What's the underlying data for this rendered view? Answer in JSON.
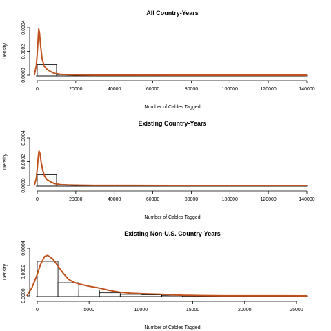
{
  "colors": {
    "density": "#c0521e",
    "axis": "#000000",
    "hist": "#000000"
  },
  "chart_data": [
    {
      "type": "histogram-density",
      "title": "All Country-Years",
      "xlabel": "Number of Cables Tagged",
      "ylabel": "Density",
      "xlim": [
        0,
        140000
      ],
      "ylim": [
        0,
        0.0004
      ],
      "xticks": [
        0,
        20000,
        40000,
        60000,
        80000,
        100000,
        120000,
        140000
      ],
      "yticks": [
        0.0,
        0.0002,
        0.0004
      ],
      "ytick_labels": [
        "0.0000",
        "0.0002",
        "0.0004"
      ],
      "bins": [
        {
          "x0": 0,
          "x1": 10000,
          "y": 9e-05
        },
        {
          "x0": 10000,
          "x1": 20000,
          "y": 4e-06
        },
        {
          "x0": 20000,
          "x1": 140000,
          "y": 5e-07
        }
      ],
      "density": {
        "x": [
          -1500,
          -500,
          0,
          500,
          800,
          1200,
          1800,
          2500,
          3500,
          5000,
          7000,
          9000,
          12000,
          16000,
          22000,
          30000,
          50000,
          80000,
          110000,
          140000
        ],
        "y": [
          0.0,
          8e-05,
          0.00018,
          0.00032,
          0.00039,
          0.00035,
          0.00024,
          0.00014,
          8e-05,
          5e-05,
          3e-05,
          1.5e-05,
          7e-06,
          4e-06,
          2e-06,
          1e-06,
          5e-07,
          3e-07,
          2e-07,
          1e-07
        ]
      }
    },
    {
      "type": "histogram-density",
      "title": "Existing Country-Years",
      "xlabel": "Number of Cables Tagged",
      "ylabel": "Density",
      "xlim": [
        0,
        140000
      ],
      "ylim": [
        0,
        0.0004
      ],
      "xticks": [
        0,
        20000,
        40000,
        60000,
        80000,
        100000,
        120000,
        140000
      ],
      "yticks": [
        0.0,
        0.0002,
        0.0004
      ],
      "ytick_labels": [
        "0.0000",
        "0.0002",
        "0.0004"
      ],
      "bins": [
        {
          "x0": 0,
          "x1": 10000,
          "y": 9e-05
        },
        {
          "x0": 10000,
          "x1": 20000,
          "y": 4e-06
        },
        {
          "x0": 20000,
          "x1": 140000,
          "y": 5e-07
        }
      ],
      "density": {
        "x": [
          -1500,
          -500,
          0,
          500,
          900,
          1400,
          2000,
          2800,
          3800,
          5000,
          7000,
          9000,
          12000,
          16000,
          22000,
          30000,
          50000,
          80000,
          110000,
          140000
        ],
        "y": [
          0.0,
          6e-05,
          0.00014,
          0.00024,
          0.00029,
          0.00027,
          0.0002,
          0.00013,
          8e-05,
          5e-05,
          3e-05,
          1.5e-05,
          7e-06,
          4e-06,
          2e-06,
          1e-06,
          5e-07,
          3e-07,
          2e-07,
          1e-07
        ]
      }
    },
    {
      "type": "histogram-density",
      "title": "Existing Non-U.S. Country-Years",
      "xlabel": "Number of Cables Tagged",
      "ylabel": "Density",
      "xlim": [
        0,
        26000
      ],
      "ylim": [
        0,
        0.0004
      ],
      "xticks": [
        0,
        5000,
        10000,
        15000,
        20000,
        25000
      ],
      "yticks": [
        0.0,
        0.0002,
        0.0004
      ],
      "ytick_labels": [
        "0.0000",
        "0.0002",
        "0.0004"
      ],
      "bins": [
        {
          "x0": 0,
          "x1": 2000,
          "y": 0.00029
        },
        {
          "x0": 2000,
          "x1": 4000,
          "y": 0.00011
        },
        {
          "x0": 4000,
          "x1": 6000,
          "y": 5e-05
        },
        {
          "x0": 6000,
          "x1": 8000,
          "y": 2.5e-05
        },
        {
          "x0": 8000,
          "x1": 10000,
          "y": 1.2e-05
        },
        {
          "x0": 10000,
          "x1": 12000,
          "y": 8e-06
        },
        {
          "x0": 12000,
          "x1": 14000,
          "y": 4e-06
        },
        {
          "x0": 14000,
          "x1": 22000,
          "y": 1e-06
        },
        {
          "x0": 22000,
          "x1": 26000,
          "y": 5e-07
        }
      ],
      "density": {
        "x": [
          -1000,
          -500,
          0,
          300,
          700,
          1000,
          1500,
          2000,
          2500,
          3000,
          3500,
          4000,
          5000,
          6000,
          7000,
          8000,
          9000,
          10000,
          11000,
          12000,
          13000,
          14000,
          16000,
          18000,
          20000,
          22000,
          24000,
          26000
        ],
        "y": [
          0.0,
          7e-05,
          0.00018,
          0.00026,
          0.00033,
          0.00034,
          0.00031,
          0.00025,
          0.00019,
          0.00014,
          0.000115,
          0.0001,
          8e-05,
          6.5e-05,
          4.5e-05,
          3e-05,
          2.2e-05,
          1.8e-05,
          1.5e-05,
          1.3e-05,
          9e-06,
          5e-06,
          2e-06,
          1e-06,
          8e-07,
          6e-07,
          4e-07,
          3e-07
        ]
      }
    }
  ]
}
